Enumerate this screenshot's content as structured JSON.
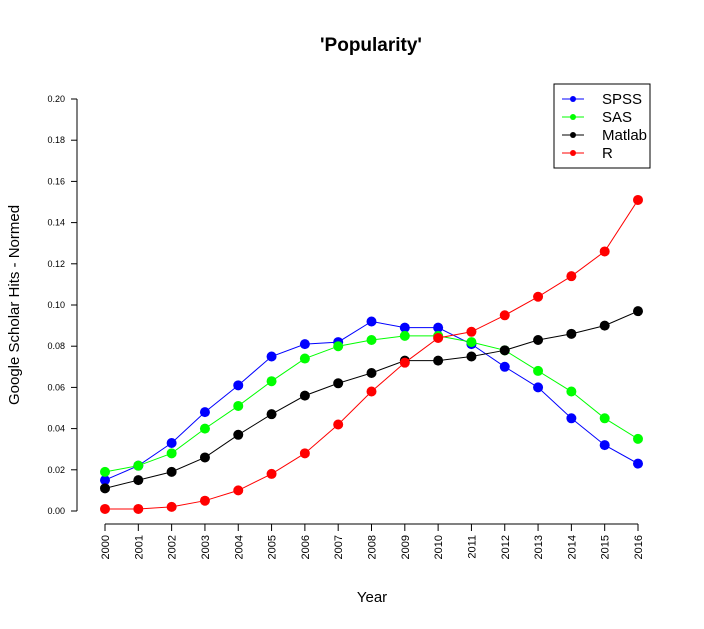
{
  "chart_data": {
    "type": "line",
    "title": "'Popularity'",
    "xlabel": "Year",
    "ylabel": "Google Scholar Hits - Normed",
    "x": [
      2000,
      2001,
      2002,
      2003,
      2004,
      2005,
      2006,
      2007,
      2008,
      2009,
      2010,
      2011,
      2012,
      2013,
      2014,
      2015,
      2016
    ],
    "x_tick_labels": [
      "2000",
      "2001",
      "2002",
      "2003",
      "2004",
      "2005",
      "2006",
      "2007",
      "2008",
      "2009",
      "2010",
      "2011",
      "2012",
      "2013",
      "2014",
      "2015",
      "2016"
    ],
    "ylim": [
      0,
      0.2
    ],
    "y_ticks": [
      0,
      0.02,
      0.04,
      0.06,
      0.08,
      0.1,
      0.12,
      0.14,
      0.16,
      0.18,
      0.2
    ],
    "y_tick_labels": [
      "0.00",
      "0.02",
      "0.04",
      "0.06",
      "0.08",
      "0.10",
      "0.12",
      "0.14",
      "0.16",
      "0.18",
      "0.20"
    ],
    "grid": false,
    "legend_position": "top-right",
    "series": [
      {
        "name": "SPSS",
        "color": "#0000ff",
        "values": [
          0.015,
          0.022,
          0.033,
          0.048,
          0.061,
          0.075,
          0.081,
          0.082,
          0.092,
          0.089,
          0.089,
          0.081,
          0.07,
          0.06,
          0.045,
          0.032,
          0.023
        ]
      },
      {
        "name": "SAS",
        "color": "#00ff00",
        "values": [
          0.019,
          0.022,
          0.028,
          0.04,
          0.051,
          0.063,
          0.074,
          0.08,
          0.083,
          0.085,
          0.085,
          0.082,
          0.078,
          0.068,
          0.058,
          0.045,
          0.035
        ]
      },
      {
        "name": "Matlab",
        "color": "#000000",
        "values": [
          0.011,
          0.015,
          0.019,
          0.026,
          0.037,
          0.047,
          0.056,
          0.062,
          0.067,
          0.073,
          0.073,
          0.075,
          0.078,
          0.083,
          0.086,
          0.09,
          0.097
        ]
      },
      {
        "name": "R",
        "color": "#ff0000",
        "values": [
          0.001,
          0.001,
          0.002,
          0.005,
          0.01,
          0.018,
          0.028,
          0.042,
          0.058,
          0.072,
          0.084,
          0.087,
          0.095,
          0.104,
          0.114,
          0.126,
          0.151
        ]
      }
    ]
  }
}
